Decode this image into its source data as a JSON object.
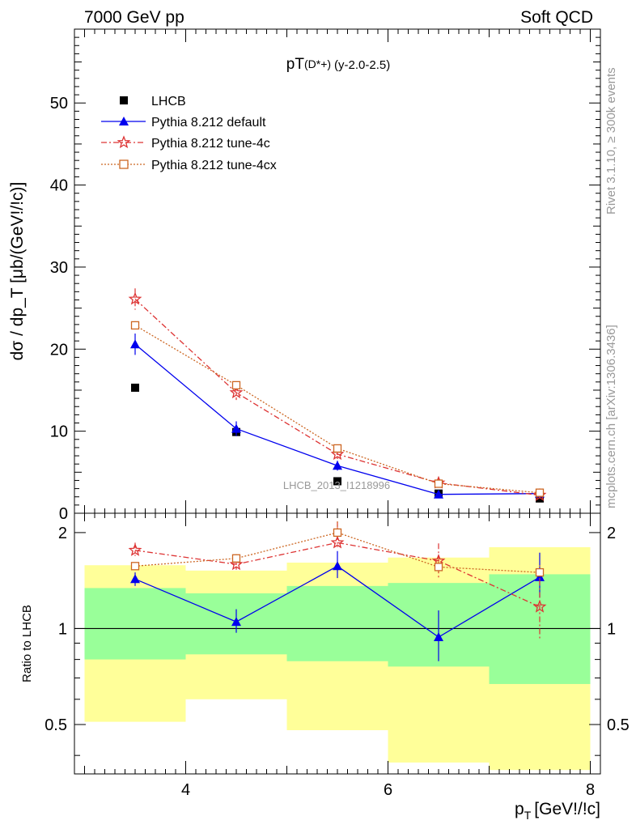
{
  "header": {
    "energy_label": "7000 GeV pp",
    "process_label": "Soft QCD"
  },
  "side_labels": {
    "rivet": "Rivet 3.1.10, ≥ 300k events",
    "mcplots": "mcplots.cern.ch [arXiv:1306.3436]"
  },
  "watermark": "LHCB_2013_I1218996",
  "colors": {
    "data": "#000000",
    "default": "#0000ee",
    "tune4c": "#dd3333",
    "tune4cx": "#cc6622",
    "band_outer": "#ffff99",
    "band_inner": "#99ff99"
  },
  "chart_data": [
    {
      "type": "scatter",
      "title_main": "pT",
      "title_sup": "(D*+)",
      "title_range": "(y-2.0-2.5)",
      "ylabel": "dσ / dp_T [μb/(GeV!/!c)]",
      "ylim": [
        0,
        59
      ],
      "yticks": [
        0,
        10,
        20,
        30,
        40,
        50
      ],
      "xlim": [
        2.9,
        8.1
      ],
      "legend": {
        "placement": "top-left",
        "entries": [
          "LHCB",
          "Pythia 8.212 default",
          "Pythia 8.212 tune-4c",
          "Pythia 8.212 tune-4cx"
        ]
      },
      "x": [
        3.5,
        4.5,
        5.5,
        6.5,
        7.5
      ],
      "series": [
        {
          "name": "LHCB",
          "values": [
            15.3,
            9.9,
            3.9,
            2.4,
            1.8
          ]
        },
        {
          "name": "Pythia 8.212 default",
          "values": [
            20.6,
            10.3,
            5.8,
            2.3,
            2.4
          ],
          "errors": [
            1.3,
            0.9,
            0.6,
            0.3,
            0.3
          ]
        },
        {
          "name": "Pythia 8.212 tune-4c",
          "values": [
            26.1,
            14.7,
            7.2,
            3.7,
            2.2
          ],
          "errors": [
            1.3,
            0.9,
            0.6,
            0.5,
            0.4
          ]
        },
        {
          "name": "Pythia 8.212 tune-4cx",
          "values": [
            22.9,
            15.6,
            7.9,
            3.6,
            2.5
          ],
          "errors": [
            0.5,
            0.4,
            0.3,
            0.2,
            0.2
          ]
        }
      ]
    },
    {
      "type": "line",
      "ylabel": "Ratio to LHCB",
      "ylim": [
        0.35,
        2.3
      ],
      "yticks": [
        0.5,
        1,
        2
      ],
      "ytick_labels": [
        "0.5",
        "1",
        "2"
      ],
      "xlim": [
        2.9,
        8.1
      ],
      "xticks": [
        4,
        6,
        8
      ],
      "xlabel": "p_T [GeV!/!c]",
      "reference_line": 1,
      "bins": [
        [
          3,
          4
        ],
        [
          4,
          5
        ],
        [
          5,
          6
        ],
        [
          6,
          7
        ],
        [
          7,
          8
        ]
      ],
      "band_outer": {
        "low": [
          0.51,
          0.6,
          0.48,
          0.38,
          0.36
        ],
        "high": [
          1.58,
          1.52,
          1.61,
          1.67,
          1.8
        ]
      },
      "band_inner": {
        "low": [
          0.8,
          0.83,
          0.79,
          0.76,
          0.67
        ],
        "high": [
          1.34,
          1.29,
          1.36,
          1.39,
          1.48
        ]
      },
      "x": [
        3.5,
        4.5,
        5.5,
        6.5,
        7.5
      ],
      "series": [
        {
          "name": "Pythia 8.212 default",
          "values": [
            1.43,
            1.05,
            1.57,
            0.94,
            1.45
          ],
          "err_low": [
            0.07,
            0.08,
            0.13,
            0.15,
            0.2
          ],
          "err_high": [
            0.07,
            0.1,
            0.18,
            0.2,
            0.28
          ]
        },
        {
          "name": "Pythia 8.212 tune-4c",
          "values": [
            1.76,
            1.59,
            1.86,
            1.63,
            1.17
          ],
          "err_low": [
            0.07,
            0.06,
            0.06,
            0.2,
            0.25
          ],
          "err_high": [
            0.1,
            0.12,
            0.3,
            0.22,
            0.25
          ]
        },
        {
          "name": "Pythia 8.212 tune-4cx",
          "values": [
            1.57,
            1.66,
            2.0,
            1.56,
            1.5
          ],
          "err_low": [
            0.03,
            0.04,
            0.05,
            0.06,
            0.08
          ],
          "err_high": [
            0.03,
            0.05,
            0.17,
            0.06,
            0.08
          ]
        }
      ]
    }
  ]
}
